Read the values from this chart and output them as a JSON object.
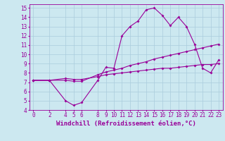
{
  "line1_x": [
    0,
    2,
    4,
    5,
    6,
    8,
    9,
    10,
    11,
    12,
    13,
    14,
    15,
    16,
    17,
    18,
    19,
    20,
    21,
    22,
    23
  ],
  "line1_y": [
    7.2,
    7.2,
    5.0,
    4.5,
    4.8,
    7.2,
    8.6,
    8.5,
    12.0,
    13.0,
    13.6,
    14.8,
    15.0,
    14.2,
    13.1,
    14.0,
    13.0,
    11.1,
    8.5,
    8.0,
    9.4
  ],
  "line2_x": [
    0,
    2,
    4,
    5,
    6,
    8,
    9,
    10,
    11,
    12,
    13,
    14,
    15,
    16,
    17,
    18,
    19,
    20,
    21,
    22,
    23
  ],
  "line2_y": [
    7.2,
    7.2,
    7.2,
    7.1,
    7.1,
    7.8,
    8.1,
    8.3,
    8.5,
    8.8,
    9.0,
    9.2,
    9.5,
    9.7,
    9.9,
    10.1,
    10.3,
    10.5,
    10.7,
    10.9,
    11.1
  ],
  "line3_x": [
    0,
    2,
    4,
    5,
    6,
    8,
    9,
    10,
    11,
    12,
    13,
    14,
    15,
    16,
    17,
    18,
    19,
    20,
    21,
    22,
    23
  ],
  "line3_y": [
    7.2,
    7.2,
    7.4,
    7.3,
    7.3,
    7.6,
    7.8,
    7.9,
    8.0,
    8.1,
    8.2,
    8.3,
    8.4,
    8.5,
    8.5,
    8.6,
    8.7,
    8.8,
    8.9,
    8.9,
    9.0
  ],
  "line_color": "#990099",
  "bg_color": "#cce8f0",
  "grid_color": "#aaccdd",
  "xlabel": "Windchill (Refroidissement éolien,°C)",
  "ylim": [
    4,
    15.4
  ],
  "xlim": [
    -0.5,
    23.5
  ],
  "xticks": [
    0,
    2,
    4,
    5,
    6,
    8,
    9,
    10,
    11,
    12,
    13,
    14,
    15,
    16,
    17,
    18,
    19,
    20,
    21,
    22,
    23
  ],
  "yticks": [
    4,
    5,
    6,
    7,
    8,
    9,
    10,
    11,
    12,
    13,
    14,
    15
  ],
  "marker": "D",
  "markersize": 2.0,
  "linewidth": 0.8,
  "xlabel_fontsize": 6.5,
  "tick_fontsize": 5.5,
  "xlabel_color": "#990099",
  "tick_color": "#990099",
  "axis_color": "#990099"
}
